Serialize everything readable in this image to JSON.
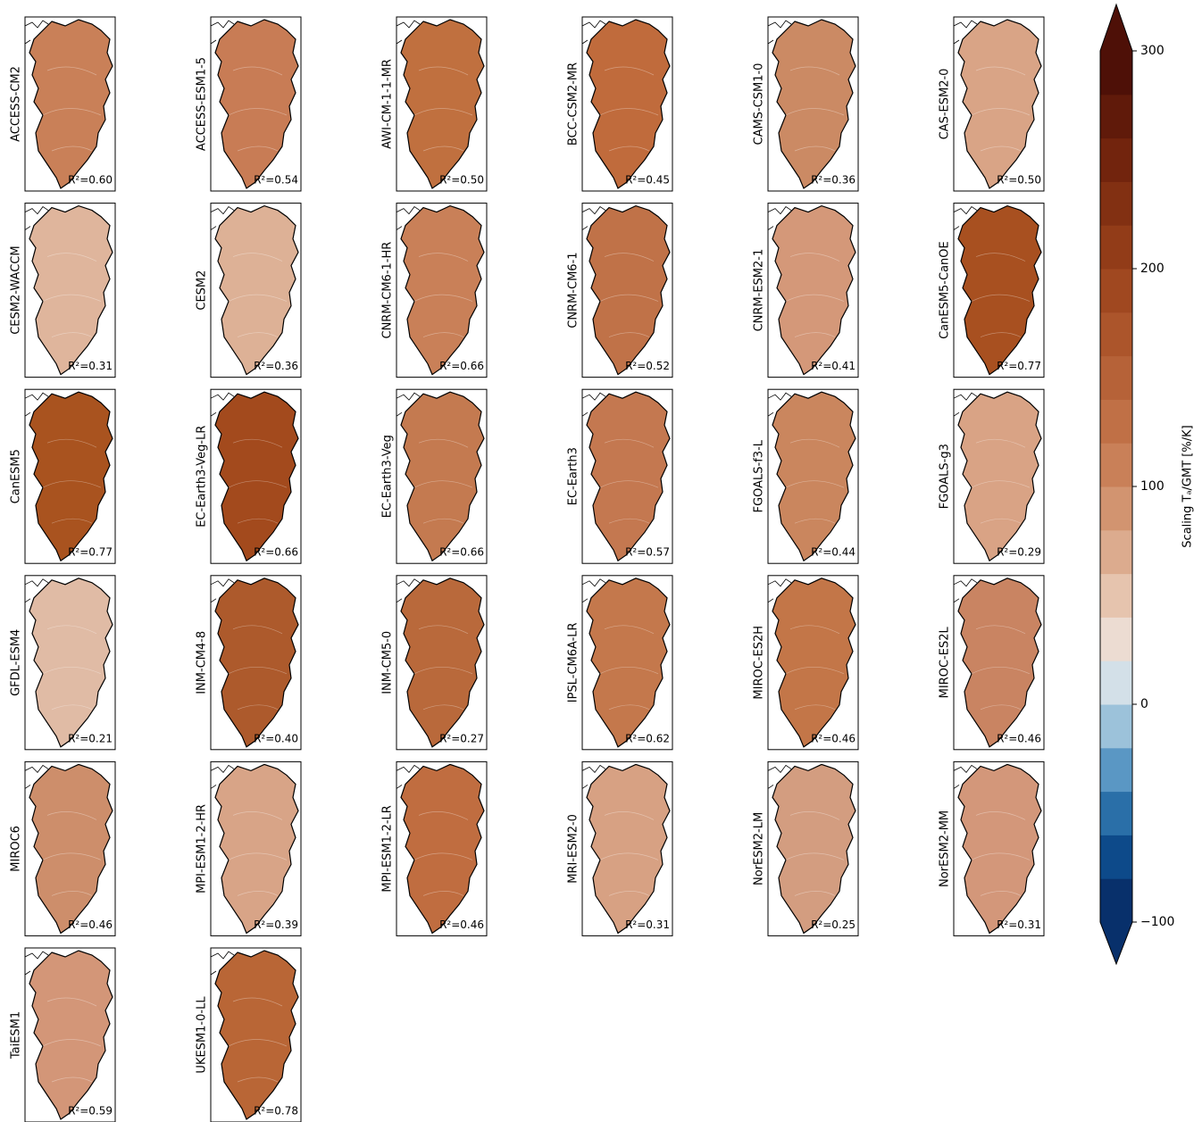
{
  "figure": {
    "panels": [
      {
        "name": "ACCESS-CM2",
        "r2": "R²=0.60",
        "color": "#c98058"
      },
      {
        "name": "ACCESS-ESM1-5",
        "r2": "R²=0.54",
        "color": "#c87c55"
      },
      {
        "name": "AWI-CM-1-1-MR",
        "r2": "R²=0.50",
        "color": "#c0703f"
      },
      {
        "name": "BCC-CSM2-MR",
        "r2": "R²=0.45",
        "color": "#c06b3c"
      },
      {
        "name": "CAMS-CSM1-0",
        "r2": "R²=0.36",
        "color": "#cb8a64"
      },
      {
        "name": "CAS-ESM2-0",
        "r2": "R²=0.50",
        "color": "#d9a486"
      },
      {
        "name": "CESM2-WACCM",
        "r2": "R²=0.31",
        "color": "#dfb59c"
      },
      {
        "name": "CESM2",
        "r2": "R²=0.36",
        "color": "#ddb196"
      },
      {
        "name": "CNRM-CM6-1-HR",
        "r2": "R²=0.66",
        "color": "#c98058"
      },
      {
        "name": "CNRM-CM6-1",
        "r2": "R²=0.52",
        "color": "#c07248"
      },
      {
        "name": "CNRM-ESM2-1",
        "r2": "R²=0.41",
        "color": "#d49879"
      },
      {
        "name": "CanESM5-CanOE",
        "r2": "R²=0.77",
        "color": "#a85020"
      },
      {
        "name": "CanESM5",
        "r2": "R²=0.77",
        "color": "#a9531f"
      },
      {
        "name": "EC-Earth3-Veg-LR",
        "r2": "R²=0.66",
        "color": "#a34a1d"
      },
      {
        "name": "EC-Earth3-Veg",
        "r2": "R²=0.66",
        "color": "#c47a50"
      },
      {
        "name": "EC-Earth3",
        "r2": "R²=0.57",
        "color": "#c47850"
      },
      {
        "name": "FGOALS-f3-L",
        "r2": "R²=0.44",
        "color": "#ca865e"
      },
      {
        "name": "FGOALS-g3",
        "r2": "R²=0.29",
        "color": "#d9a385"
      },
      {
        "name": "GFDL-ESM4",
        "r2": "R²=0.21",
        "color": "#e0bba5"
      },
      {
        "name": "INM-CM4-8",
        "r2": "R²=0.40",
        "color": "#ad5a2c"
      },
      {
        "name": "INM-CM5-0",
        "r2": "R²=0.27",
        "color": "#b9693b"
      },
      {
        "name": "IPSL-CM6A-LR",
        "r2": "R²=0.62",
        "color": "#c4784c"
      },
      {
        "name": "MIROC-ES2H",
        "r2": "R²=0.46",
        "color": "#c37648"
      },
      {
        "name": "MIROC-ES2L",
        "r2": "R²=0.46",
        "color": "#c98462"
      },
      {
        "name": "MIROC6",
        "r2": "R²=0.46",
        "color": "#cd8e6b"
      },
      {
        "name": "MPI-ESM1-2-HR",
        "r2": "R²=0.39",
        "color": "#d8a487"
      },
      {
        "name": "MPI-ESM1-2-LR",
        "r2": "R²=0.46",
        "color": "#c06d40"
      },
      {
        "name": "MRI-ESM2-0",
        "r2": "R²=0.31",
        "color": "#d7a183"
      },
      {
        "name": "NorESM2-LM",
        "r2": "R²=0.25",
        "color": "#d39d80"
      },
      {
        "name": "NorESM2-MM",
        "r2": "R²=0.31",
        "color": "#d3977a"
      },
      {
        "name": "TaiESM1",
        "r2": "R²=0.59",
        "color": "#d39678"
      },
      {
        "name": "UKESM1-0-LL",
        "r2": "R²=0.78",
        "color": "#b96636"
      }
    ],
    "colorbar": {
      "label": "Scaling Tₐ/GMT [%/K]",
      "ylim": [
        -100,
        300
      ],
      "yticks": [
        {
          "value": -100,
          "label": "−100"
        },
        0,
        100,
        200,
        300
      ],
      "colors": [
        "#08306b",
        "#0d4a8a",
        "#2a6fa8",
        "#5a97c4",
        "#9cc2da",
        "#d3e0e8",
        "#ecdcd2",
        "#e6c4ae",
        "#dcab8e",
        "#d29470",
        "#c98058",
        "#c07046",
        "#b66238",
        "#ac552b",
        "#a04820",
        "#923c18",
        "#823012",
        "#72240d",
        "#601a0a",
        "#4e1007"
      ]
    }
  }
}
